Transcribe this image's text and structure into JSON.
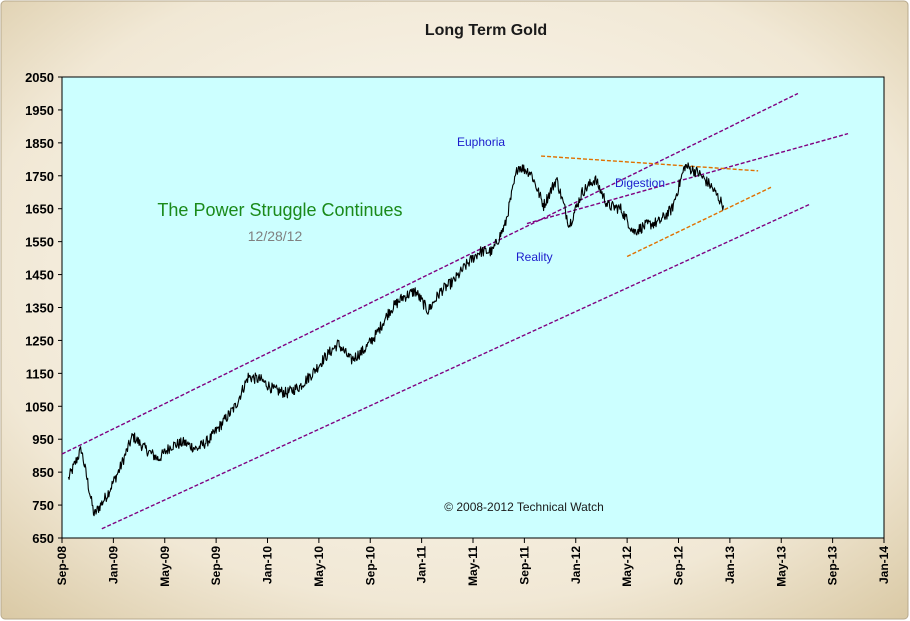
{
  "chart_data": {
    "type": "line",
    "title": "Long Term Gold",
    "subtitle": "",
    "xlabel": "",
    "ylabel": "",
    "ylim": [
      650,
      2050
    ],
    "yticks": [
      650,
      750,
      850,
      950,
      1050,
      1150,
      1250,
      1350,
      1450,
      1550,
      1650,
      1750,
      1850,
      1950,
      2050
    ],
    "xlim": [
      "2008-09",
      "2014-01"
    ],
    "xticks": [
      "Sep-08",
      "Jan-09",
      "May-09",
      "Sep-09",
      "Jan-10",
      "May-10",
      "Sep-10",
      "Jan-11",
      "May-11",
      "Sep-11",
      "Jan-12",
      "May-12",
      "Sep-12",
      "Jan-13",
      "May-13",
      "Sep-13",
      "Jan-14"
    ],
    "grid": false,
    "legend": "none",
    "colors": {
      "frame": "#e2d3b5",
      "plot_background": "#ccffff",
      "price_line": "#000000",
      "channel_lines": "#800080",
      "triangle_lines": "#e07000",
      "headline_text": "#1a8a1a",
      "annotation_text": "#1c1ccc",
      "date_text": "#808080"
    },
    "series": [
      {
        "x": [
          "Sep-08",
          "Oct-08",
          "Nov-08",
          "Dec-08",
          "Jan-09",
          "Feb-09",
          "Mar-09",
          "Apr-09",
          "May-09",
          "Jun-09",
          "Jul-09",
          "Aug-09",
          "Sep-09",
          "Oct-09",
          "Nov-09",
          "Dec-09",
          "Jan-10",
          "Feb-10",
          "Mar-10",
          "Apr-10",
          "May-10",
          "Jun-10",
          "Jul-10",
          "Aug-10",
          "Sep-10",
          "Oct-10",
          "Nov-10",
          "Dec-10",
          "Jan-11",
          "Feb-11",
          "Mar-11",
          "Apr-11",
          "May-11",
          "Jun-11",
          "Jul-11",
          "Aug-11",
          "Sep-11",
          "Oct-11",
          "Nov-11",
          "Dec-11",
          "Jan-12",
          "Feb-12",
          "Mar-12",
          "Apr-12",
          "May-12",
          "Jun-12",
          "Jul-12",
          "Aug-12",
          "Sep-12",
          "Oct-12",
          "Nov-12",
          "Dec-12"
        ],
        "values": [
          830,
          920,
          720,
          780,
          860,
          960,
          920,
          890,
          930,
          940,
          920,
          950,
          1000,
          1050,
          1140,
          1130,
          1100,
          1090,
          1110,
          1150,
          1200,
          1240,
          1190,
          1220,
          1270,
          1340,
          1380,
          1400,
          1340,
          1400,
          1430,
          1480,
          1520,
          1520,
          1600,
          1780,
          1760,
          1660,
          1740,
          1600,
          1700,
          1740,
          1660,
          1650,
          1580,
          1600,
          1610,
          1650,
          1780,
          1760,
          1720,
          1660
        ]
      }
    ],
    "annotations": {
      "headline": "The Power Struggle Continues",
      "date": "12/28/12",
      "euphoria": "Euphoria",
      "reality": "Reality",
      "digestion": "Digestion",
      "copyright": "© 2008-2012  Technical Watch"
    }
  }
}
